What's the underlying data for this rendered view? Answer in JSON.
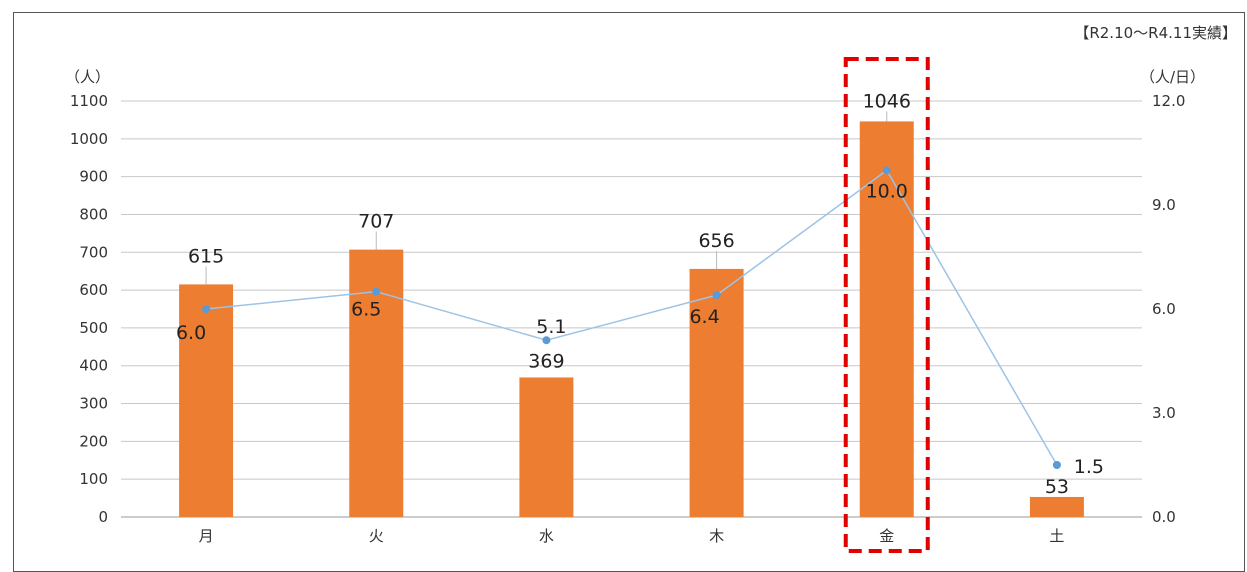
{
  "chart_data": {
    "type": "bar",
    "note": "【R2.10～R4.11実績】",
    "y_left_unit": "（人）",
    "y_right_unit": "（人/日）",
    "categories": [
      "月",
      "火",
      "水",
      "木",
      "金",
      "土"
    ],
    "series": [
      {
        "type": "bar",
        "axis": "left",
        "values": [
          615,
          707,
          369,
          656,
          1046,
          53
        ],
        "labels": [
          "615",
          "707",
          "369",
          "656",
          "1046",
          "53"
        ]
      },
      {
        "type": "line",
        "axis": "right",
        "values": [
          6.0,
          6.5,
          5.1,
          6.4,
          10.0,
          1.5
        ],
        "labels": [
          "6.0",
          "6.5",
          "5.1",
          "6.4",
          "10.0",
          "1.5"
        ]
      }
    ],
    "y_left": {
      "min": 0,
      "max": 1100,
      "step": 100,
      "ticks": [
        "0",
        "100",
        "200",
        "300",
        "400",
        "500",
        "600",
        "700",
        "800",
        "900",
        "1000",
        "1100"
      ]
    },
    "y_right": {
      "min": 0,
      "max": 12,
      "step": 3,
      "ticks": [
        "0.0",
        "3.0",
        "6.0",
        "9.0",
        "12.0"
      ]
    },
    "highlight_category": "金",
    "grid": true,
    "colors": {
      "bar": "#ED7D31",
      "line": "#9DC3E6",
      "marker": "#5B9BD5",
      "highlight": "#E00000",
      "grid": "#C8C8C8"
    }
  }
}
